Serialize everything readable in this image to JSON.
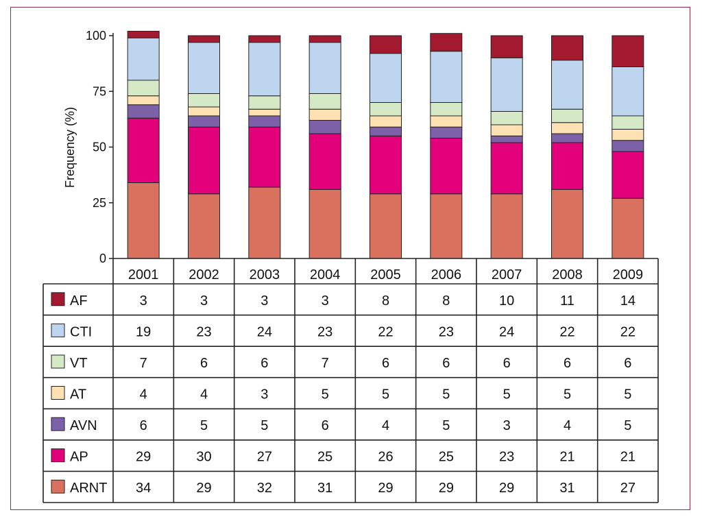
{
  "chart_data": {
    "type": "bar",
    "stacked": true,
    "ylabel": "Frequency (%)",
    "xlabel": "",
    "ylim": [
      0,
      100
    ],
    "yticks": [
      0,
      25,
      50,
      75,
      100
    ],
    "grid": false,
    "legend_placement": "table-below",
    "categories": [
      "2001",
      "2002",
      "2003",
      "2004",
      "2005",
      "2006",
      "2007",
      "2008",
      "2009"
    ],
    "series": [
      {
        "name": "AF",
        "color": "#a3192f",
        "values": [
          3,
          3,
          3,
          3,
          8,
          8,
          10,
          11,
          14
        ]
      },
      {
        "name": "CTI",
        "color": "#bdd5ee",
        "values": [
          19,
          23,
          24,
          23,
          22,
          23,
          24,
          22,
          22
        ]
      },
      {
        "name": "VT",
        "color": "#d5e9c6",
        "values": [
          7,
          6,
          6,
          7,
          6,
          6,
          6,
          6,
          6
        ]
      },
      {
        "name": "AT",
        "color": "#fde1b3",
        "values": [
          4,
          4,
          3,
          5,
          5,
          5,
          5,
          5,
          5
        ]
      },
      {
        "name": "AVN",
        "color": "#7c60a8",
        "values": [
          6,
          5,
          5,
          6,
          4,
          5,
          3,
          4,
          5
        ]
      },
      {
        "name": "AP",
        "color": "#e3007b",
        "values": [
          29,
          30,
          27,
          25,
          26,
          25,
          23,
          21,
          21
        ]
      },
      {
        "name": "ARNT",
        "color": "#da715f",
        "values": [
          34,
          29,
          32,
          31,
          29,
          29,
          29,
          31,
          27
        ]
      }
    ],
    "stack_order_bottom_to_top": [
      "ARNT",
      "AP",
      "AVN",
      "AT",
      "VT",
      "CTI",
      "AF"
    ]
  }
}
